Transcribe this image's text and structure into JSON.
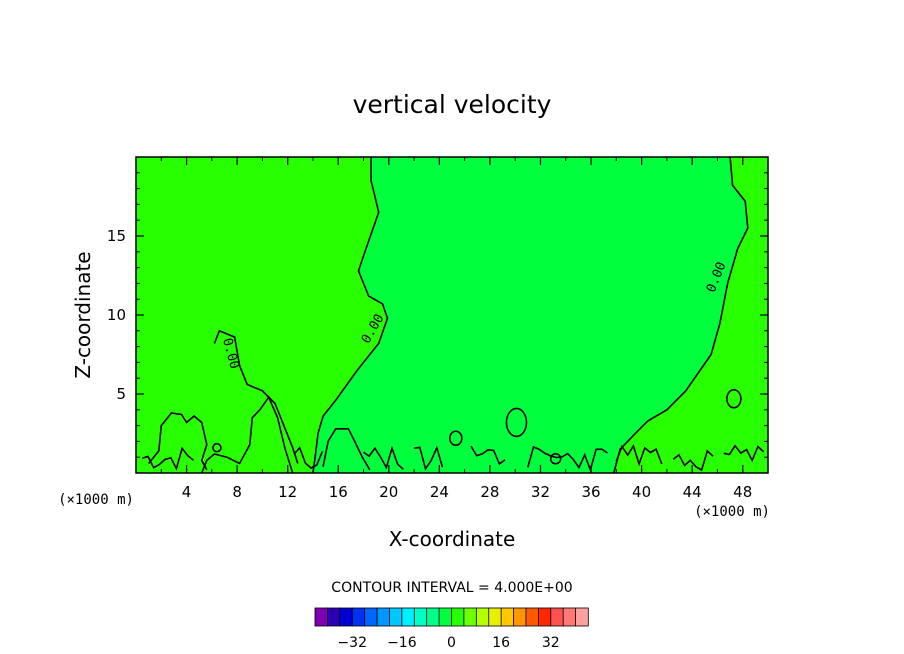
{
  "chart_data": {
    "type": "heatmap",
    "title": "vertical velocity",
    "xlabel": "X-coordinate",
    "ylabel": "Z-coordinate",
    "x_unit": "(×1000 m)",
    "z_unit": "(×1000 m)",
    "xlim": [
      0,
      50
    ],
    "ylim": [
      0,
      20
    ],
    "x_ticks": [
      4,
      8,
      12,
      16,
      20,
      24,
      28,
      32,
      36,
      40,
      44,
      48
    ],
    "y_ticks": [
      5,
      10,
      15
    ],
    "contour_interval_text": "CONTOUR INTERVAL = 4.000E+00",
    "contour_levels": [
      0
    ],
    "contour_labels": [
      "0.00",
      "0.00",
      "0.00"
    ],
    "regions": [
      {
        "name": "slightly positive (0 to 4)",
        "color": "#28ff00"
      },
      {
        "name": "slightly negative (-4 to 0)",
        "color": "#00ff3c"
      }
    ],
    "colorbar": {
      "ticks": [
        -32,
        -16,
        0,
        16,
        32
      ],
      "tick_labels": [
        "−32",
        "−16",
        "0",
        "16",
        "32"
      ],
      "colors": [
        "#7f00b2",
        "#2a00b2",
        "#0000d4",
        "#0030f0",
        "#0064ff",
        "#0096ff",
        "#00c8ff",
        "#00f0ff",
        "#00ffc8",
        "#00ff8c",
        "#00ff3c",
        "#28ff00",
        "#6eff00",
        "#b4ff00",
        "#e6f000",
        "#ffc800",
        "#ff9600",
        "#ff5a00",
        "#ff2800",
        "#ff5050",
        "#ff7878",
        "#ffa0a0"
      ]
    }
  }
}
